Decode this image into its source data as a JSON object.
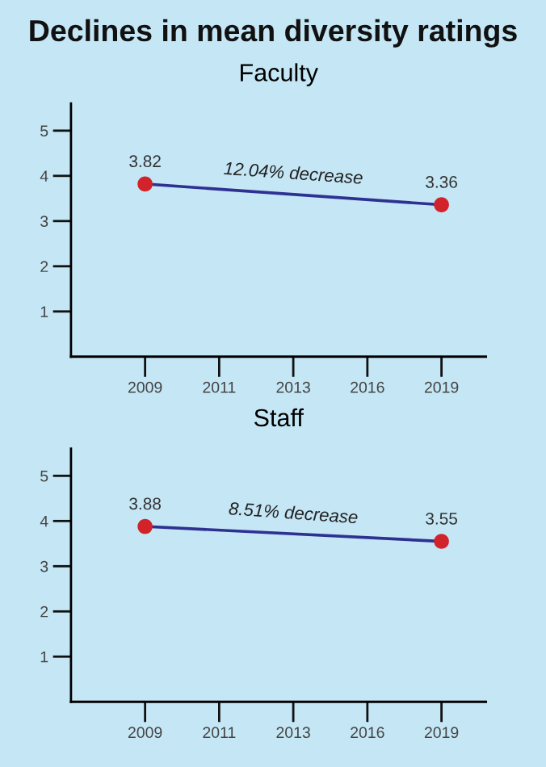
{
  "chart_data": [
    {
      "type": "line",
      "title": "Declines in mean diversity ratings",
      "subtitle": "Faculty",
      "categories": [
        "2009",
        "2011",
        "2013",
        "2016",
        "2019"
      ],
      "series": [
        {
          "color": "#2e3192",
          "colors": [
            "#d2232a",
            null,
            null,
            null,
            "#d2232a"
          ],
          "values": [
            3.82,
            null,
            null,
            null,
            3.36
          ]
        }
      ],
      "ylim": [
        0,
        5.6
      ],
      "yticks": [
        1,
        2,
        3,
        4,
        5
      ],
      "data_labels": true,
      "marker": "circle",
      "grid": false,
      "legend": false,
      "annotations": [
        "12.04% decrease"
      ]
    },
    {
      "type": "line",
      "subtitle": "Staff",
      "categories": [
        "2009",
        "2011",
        "2013",
        "2016",
        "2019"
      ],
      "series": [
        {
          "color": "#2e3192",
          "colors": [
            "#d2232a",
            null,
            null,
            null,
            "#d2232a"
          ],
          "values": [
            3.88,
            null,
            null,
            null,
            3.55
          ]
        }
      ],
      "ylim": [
        0,
        5.6
      ],
      "yticks": [
        1,
        2,
        3,
        4,
        5
      ],
      "data_labels": true,
      "marker": "circle",
      "grid": false,
      "legend": false,
      "annotations": [
        "8.51% decrease"
      ]
    }
  ]
}
